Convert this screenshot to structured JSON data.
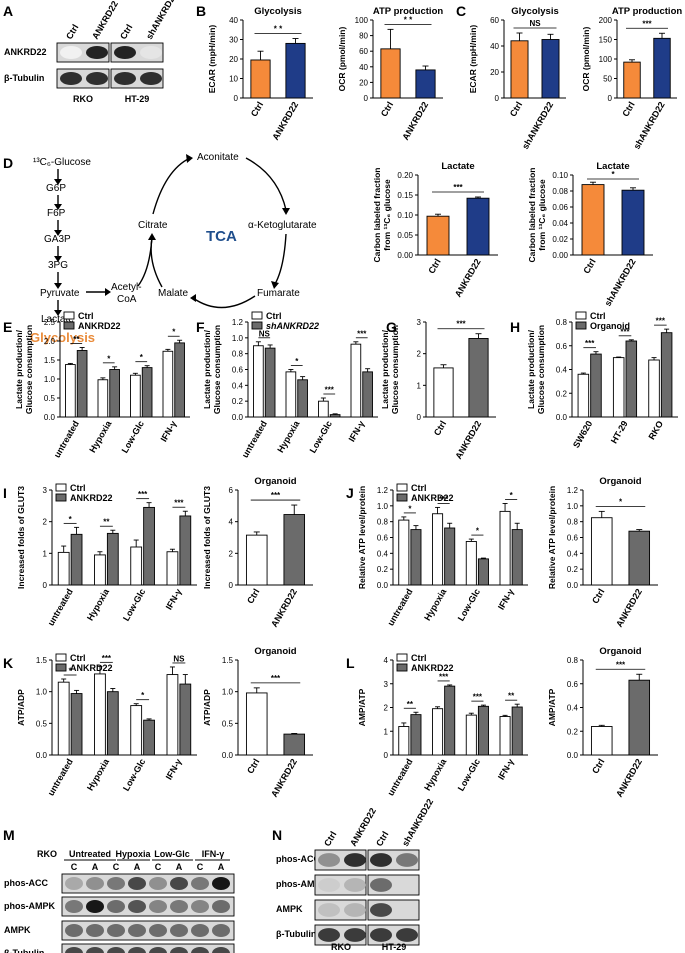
{
  "colors": {
    "orange": "#F58A3A",
    "blue": "#1F3C88",
    "grey": "#6B6B6B",
    "white": "#FFFFFF",
    "black": "#000000",
    "glyco": "#E98B3A",
    "tca": "#1F4E8C"
  },
  "labels": {
    "A": "A",
    "B": "B",
    "C": "C",
    "D": "D",
    "E": "E",
    "F": "F",
    "G": "G",
    "H": "H",
    "I": "I",
    "J": "J",
    "K": "K",
    "L": "L",
    "M": "M",
    "N": "N",
    "pathway": {
      "glucose": "¹³C₆-Glucose",
      "g6p": "G6P",
      "f6p": "F6P",
      "ga3p": "GA3P",
      "pg3": "3PG",
      "pyruvate": "Pyruvate",
      "lactate": "Lactate",
      "glycolysis": "Glycolysis",
      "acetyl": "Acetyl-",
      "coa": "CoA",
      "aconitate": "Aconitate",
      "citrate": "Citrate",
      "akg": "α-Ketoglutarate",
      "tca": "TCA",
      "malate": "Malate",
      "fumarate": "Fumarate"
    }
  },
  "blotA": {
    "lanes": [
      "Ctrl",
      "ANKRD22",
      "Ctrl",
      "shANKRD22"
    ],
    "rows": [
      "ANKRD22",
      "β-Tubulin"
    ],
    "groups": [
      "RKO",
      "HT-29"
    ],
    "intensities": [
      [
        0.05,
        0.9,
        0.9,
        0.1
      ],
      [
        0.85,
        0.85,
        0.85,
        0.85
      ]
    ]
  },
  "blotM": {
    "cell": "RKO",
    "conditions": [
      "Untreated",
      "Hypoxia",
      "Low-Glc",
      "IFN-γ"
    ],
    "lanes": [
      "C",
      "A",
      "C",
      "A",
      "C",
      "A",
      "C",
      "A"
    ],
    "rows": [
      "phos-ACC",
      "phos-AMPK",
      "AMPK",
      "β-Tubulin"
    ],
    "intensities": [
      [
        0.35,
        0.45,
        0.55,
        0.75,
        0.45,
        0.75,
        0.55,
        0.95
      ],
      [
        0.55,
        0.95,
        0.6,
        0.7,
        0.5,
        0.55,
        0.5,
        0.6
      ],
      [
        0.6,
        0.6,
        0.6,
        0.6,
        0.6,
        0.6,
        0.6,
        0.6
      ],
      [
        0.75,
        0.75,
        0.75,
        0.75,
        0.75,
        0.75,
        0.75,
        0.75
      ]
    ]
  },
  "blotN": {
    "lanes": [
      "Ctrl",
      "ANKRD22",
      "Ctrl",
      "shANKRD22"
    ],
    "rows": [
      "phos-ACC",
      "phos-AMPK",
      "AMPK",
      "β-Tubulin"
    ],
    "groups": [
      "RKO",
      "HT-29"
    ],
    "intensities": [
      [
        0.45,
        0.85,
        0.85,
        0.55
      ],
      [
        0.2,
        0.3,
        0.6,
        0.15
      ],
      [
        0.25,
        0.3,
        0.75,
        0.15
      ],
      [
        0.8,
        0.8,
        0.8,
        0.8
      ]
    ]
  },
  "chart_data": [
    {
      "id": "B1",
      "type": "bar",
      "title": "Glycolysis",
      "ylabel": "ECAR (mpH/min)",
      "ylim": [
        0,
        40
      ],
      "ticks": [
        0,
        10,
        20,
        30,
        40
      ],
      "categories": [
        "Ctrl",
        "ANKRD22"
      ],
      "values": [
        19.5,
        28
      ],
      "errors": [
        4.5,
        2.5
      ],
      "colors": [
        "orange",
        "blue"
      ],
      "sig": [
        {
          "a": 0,
          "b": 1,
          "t": "* *"
        }
      ]
    },
    {
      "id": "B2",
      "type": "bar",
      "title": "ATP production",
      "ylabel": "OCR (pmol/min)",
      "ylim": [
        0,
        100
      ],
      "ticks": [
        0,
        20,
        40,
        60,
        80,
        100
      ],
      "categories": [
        "Ctrl",
        "ANKRD22"
      ],
      "values": [
        63,
        36
      ],
      "errors": [
        25,
        5
      ],
      "colors": [
        "orange",
        "blue"
      ],
      "sig": [
        {
          "a": 0,
          "b": 1,
          "t": "* *"
        }
      ]
    },
    {
      "id": "C1",
      "type": "bar",
      "title": "Glycolysis",
      "ylabel": "ECAR (mpH/min)",
      "ylim": [
        0,
        60
      ],
      "ticks": [
        0,
        20,
        40,
        60
      ],
      "categories": [
        "Ctrl",
        "shANKRD22"
      ],
      "values": [
        44,
        45
      ],
      "errors": [
        6,
        4
      ],
      "colors": [
        "orange",
        "blue"
      ],
      "sig": [
        {
          "a": 0,
          "b": 1,
          "t": "NS"
        }
      ]
    },
    {
      "id": "C2",
      "type": "bar",
      "title": "ATP production",
      "ylabel": "OCR (pmol/min)",
      "ylim": [
        0,
        200
      ],
      "ticks": [
        0,
        50,
        100,
        150,
        200
      ],
      "categories": [
        "Ctrl",
        "shANKRD22"
      ],
      "values": [
        92,
        153
      ],
      "errors": [
        6,
        13
      ],
      "colors": [
        "orange",
        "blue"
      ],
      "sig": [
        {
          "a": 0,
          "b": 1,
          "t": "***"
        }
      ]
    },
    {
      "id": "D1",
      "type": "bar",
      "title": "Lactate",
      "ylabel": "Carbon labeled fraction",
      "ylabel2": "from ¹³C₆ glucose",
      "ylim": [
        0,
        0.2
      ],
      "ticks": [
        0,
        0.05,
        0.1,
        0.15,
        0.2
      ],
      "tickLabels": [
        "0.00",
        "0.05",
        "0.10",
        "0.15",
        "0.20"
      ],
      "categories": [
        "Ctrl",
        "ANKRD22"
      ],
      "values": [
        0.097,
        0.142
      ],
      "errors": [
        0.005,
        0.003
      ],
      "colors": [
        "orange",
        "blue"
      ],
      "sig": [
        {
          "a": 0,
          "b": 1,
          "t": "***"
        }
      ]
    },
    {
      "id": "D2",
      "type": "bar",
      "title": "Lactate",
      "ylabel": "Carbon labeled fraction",
      "ylabel2": "from ¹³C₆ glucose",
      "ylim": [
        0,
        0.1
      ],
      "ticks": [
        0,
        0.02,
        0.04,
        0.06,
        0.08,
        0.1
      ],
      "tickLabels": [
        "0.00",
        "0.02",
        "0.04",
        "0.06",
        "0.08",
        "0.10"
      ],
      "categories": [
        "Ctrl",
        "shANKRD22"
      ],
      "values": [
        0.088,
        0.081
      ],
      "errors": [
        0.003,
        0.003
      ],
      "colors": [
        "orange",
        "blue"
      ],
      "sig": [
        {
          "a": 0,
          "b": 1,
          "t": "*"
        }
      ]
    },
    {
      "id": "E",
      "type": "bar",
      "ylabel": "Lactate production/",
      "ylabel2": "Glucose consumption",
      "ylim": [
        0,
        2.5
      ],
      "ticks": [
        0,
        0.5,
        1,
        1.5,
        2,
        2.5
      ],
      "tickLabels": [
        "0.0",
        "0.5",
        "1.0",
        "1.5",
        "2.0",
        "2.5"
      ],
      "categories": [
        "untreated",
        "Hypoxia",
        "Low-Glc",
        "IFN-γ"
      ],
      "series": [
        {
          "name": "Ctrl",
          "values": [
            1.38,
            0.98,
            1.1,
            1.73
          ],
          "errors": [
            0.03,
            0.05,
            0.05,
            0.05
          ]
        },
        {
          "name": "ANKRD22",
          "values": [
            1.75,
            1.25,
            1.3,
            1.95
          ],
          "errors": [
            0.08,
            0.07,
            0.05,
            0.07
          ]
        }
      ],
      "fills": [
        "white",
        "grey"
      ],
      "sig": [
        {
          "g": 0,
          "t": "**"
        },
        {
          "g": 1,
          "t": "*"
        },
        {
          "g": 2,
          "t": "*"
        },
        {
          "g": 3,
          "t": "*"
        }
      ],
      "legendItalic": false
    },
    {
      "id": "F",
      "type": "bar",
      "ylabel": "Lactate production/",
      "ylabel2": "Glucose consumption",
      "ylim": [
        0,
        1.2
      ],
      "ticks": [
        0,
        0.2,
        0.4,
        0.6,
        0.8,
        1.0,
        1.2
      ],
      "tickLabels": [
        "0.0",
        "0.2",
        "0.4",
        "0.6",
        "0.8",
        "1.0",
        "1.2"
      ],
      "categories": [
        "untreated",
        "Hypoxia",
        "Low-Glc",
        "IFN-γ"
      ],
      "series": [
        {
          "name": "Ctrl",
          "values": [
            0.9,
            0.57,
            0.2,
            0.92
          ],
          "errors": [
            0.05,
            0.03,
            0.04,
            0.03
          ]
        },
        {
          "name": "shANKRD22",
          "values": [
            0.87,
            0.47,
            0.03,
            0.57
          ],
          "errors": [
            0.04,
            0.04,
            0.01,
            0.04
          ]
        }
      ],
      "fills": [
        "white",
        "grey"
      ],
      "sig": [
        {
          "g": 0,
          "t": "NS"
        },
        {
          "g": 1,
          "t": "*"
        },
        {
          "g": 2,
          "t": "***"
        },
        {
          "g": 3,
          "t": "***"
        }
      ],
      "legendItalic": true
    },
    {
      "id": "G",
      "type": "bar",
      "ylabel": "Lactate production/",
      "ylabel2": "Glucose consumption",
      "ylim": [
        0,
        3
      ],
      "ticks": [
        0,
        1,
        2,
        3
      ],
      "tickLabels": [
        "0",
        "1",
        "2",
        "3"
      ],
      "categories": [
        "Ctrl",
        "ANKRD22"
      ],
      "values": [
        1.55,
        2.48
      ],
      "errors": [
        0.1,
        0.15
      ],
      "fills": [
        "white",
        "grey"
      ],
      "sig": [
        {
          "a": 0,
          "b": 1,
          "t": "***"
        }
      ]
    },
    {
      "id": "H",
      "type": "bar",
      "ylabel": "Lactate production/",
      "ylabel2": "Glucose consumption",
      "ylim": [
        0,
        0.8
      ],
      "ticks": [
        0,
        0.2,
        0.4,
        0.6,
        0.8
      ],
      "tickLabels": [
        "0.0",
        "0.2",
        "0.4",
        "0.6",
        "0.8"
      ],
      "categories": [
        "SW620",
        "HT-29",
        "RKO"
      ],
      "series": [
        {
          "name": "Ctrl",
          "values": [
            0.36,
            0.5,
            0.48
          ],
          "errors": [
            0.01,
            0.005,
            0.02
          ]
        },
        {
          "name": "Organoid",
          "values": [
            0.53,
            0.64,
            0.71
          ],
          "errors": [
            0.02,
            0.01,
            0.03
          ]
        }
      ],
      "fills": [
        "white",
        "grey"
      ],
      "sig": [
        {
          "g": 0,
          "t": "***"
        },
        {
          "g": 1,
          "t": "***"
        },
        {
          "g": 2,
          "t": "***"
        }
      ],
      "legendItalic": false
    },
    {
      "id": "I1",
      "type": "bar",
      "ylabel": "Increased folds of GLUT3",
      "ylim": [
        0,
        3
      ],
      "ticks": [
        0,
        1,
        2,
        3
      ],
      "tickLabels": [
        "0",
        "1",
        "2",
        "3"
      ],
      "categories": [
        "untreated",
        "Hypoxia",
        "Low-Glc",
        "IFN-γ"
      ],
      "series": [
        {
          "name": "Ctrl",
          "values": [
            1.03,
            0.95,
            1.2,
            1.05
          ],
          "errors": [
            0.2,
            0.1,
            0.22,
            0.08
          ]
        },
        {
          "name": "ANKRD22",
          "values": [
            1.6,
            1.63,
            2.45,
            2.18
          ],
          "errors": [
            0.22,
            0.1,
            0.15,
            0.15
          ]
        }
      ],
      "fills": [
        "white",
        "grey"
      ],
      "sig": [
        {
          "g": 0,
          "t": "*"
        },
        {
          "g": 1,
          "t": "**"
        },
        {
          "g": 2,
          "t": "***"
        },
        {
          "g": 3,
          "t": "***"
        }
      ],
      "legendItalic": false
    },
    {
      "id": "I2",
      "type": "bar",
      "title": "Organoid",
      "ylabel": "Increased folds of GLUT3",
      "ylim": [
        0,
        6
      ],
      "ticks": [
        0,
        2,
        4,
        6
      ],
      "tickLabels": [
        "0",
        "2",
        "4",
        "6"
      ],
      "categories": [
        "Ctrl",
        "ANKRD22"
      ],
      "values": [
        3.15,
        4.45
      ],
      "errors": [
        0.2,
        0.6
      ],
      "fills": [
        "white",
        "grey"
      ],
      "sig": [
        {
          "a": 0,
          "b": 1,
          "t": "***"
        }
      ]
    },
    {
      "id": "J1",
      "type": "bar",
      "ylabel": "Relative ATP level/protein",
      "ylim": [
        0,
        1.2
      ],
      "ticks": [
        0,
        0.2,
        0.4,
        0.6,
        0.8,
        1.0,
        1.2
      ],
      "tickLabels": [
        "0.0",
        "0.2",
        "0.4",
        "0.6",
        "0.8",
        "1.0",
        "1.2"
      ],
      "categories": [
        "untreated",
        "Hypoxia",
        "Low-Glc",
        "IFN-γ"
      ],
      "series": [
        {
          "name": "Ctrl",
          "values": [
            0.82,
            0.9,
            0.55,
            0.93
          ],
          "errors": [
            0.04,
            0.08,
            0.03,
            0.1
          ]
        },
        {
          "name": "ANKRD22",
          "values": [
            0.7,
            0.72,
            0.33,
            0.7
          ],
          "errors": [
            0.05,
            0.06,
            0.01,
            0.08
          ]
        }
      ],
      "fills": [
        "white",
        "grey"
      ],
      "sig": [
        {
          "g": 0,
          "t": "*"
        },
        {
          "g": 1,
          "t": "***"
        },
        {
          "g": 2,
          "t": "*"
        },
        {
          "g": 3,
          "t": "*"
        }
      ],
      "legendItalic": false
    },
    {
      "id": "J2",
      "type": "bar",
      "title": "Organoid",
      "ylabel": "Relative ATP level/protein",
      "ylim": [
        0,
        1.2
      ],
      "ticks": [
        0,
        0.2,
        0.4,
        0.6,
        0.8,
        1.0,
        1.2
      ],
      "tickLabels": [
        "0.0",
        "0.2",
        "0.4",
        "0.6",
        "0.8",
        "1.0",
        "1.2"
      ],
      "categories": [
        "Ctrl",
        "ANKRD22"
      ],
      "values": [
        0.85,
        0.68
      ],
      "errors": [
        0.08,
        0.02
      ],
      "fills": [
        "white",
        "grey"
      ],
      "sig": [
        {
          "a": 0,
          "b": 1,
          "t": "*"
        }
      ]
    },
    {
      "id": "K1",
      "type": "bar",
      "ylabel": "ATP/ADP",
      "ylim": [
        0,
        1.5
      ],
      "ticks": [
        0,
        0.5,
        1.0,
        1.5
      ],
      "tickLabels": [
        "0.0",
        "0.5",
        "1.0",
        "1.5"
      ],
      "categories": [
        "untreated",
        "Hypoxia",
        "Low-Glc",
        "IFN-γ"
      ],
      "series": [
        {
          "name": "Ctrl",
          "values": [
            1.15,
            1.28,
            0.78,
            1.27
          ],
          "errors": [
            0.05,
            0.12,
            0.03,
            0.12
          ]
        },
        {
          "name": "ANKRD22",
          "values": [
            0.97,
            1.0,
            0.55,
            1.12
          ],
          "errors": [
            0.05,
            0.05,
            0.02,
            0.15
          ]
        }
      ],
      "fills": [
        "white",
        "grey"
      ],
      "sig": [
        {
          "g": 0,
          "t": "*"
        },
        {
          "g": 1,
          "t": "***"
        },
        {
          "g": 2,
          "t": "*"
        },
        {
          "g": 3,
          "t": "NS"
        }
      ],
      "legendItalic": false
    },
    {
      "id": "K2",
      "type": "bar",
      "title": "Organoid",
      "ylabel": "ATP/ADP",
      "ylim": [
        0,
        1.5
      ],
      "ticks": [
        0,
        0.5,
        1.0,
        1.5
      ],
      "tickLabels": [
        "0.0",
        "0.5",
        "1.0",
        "1.5"
      ],
      "categories": [
        "Ctrl",
        "ANKRD22"
      ],
      "values": [
        0.98,
        0.33
      ],
      "errors": [
        0.08,
        0.01
      ],
      "fills": [
        "white",
        "grey"
      ],
      "sig": [
        {
          "a": 0,
          "b": 1,
          "t": "***"
        }
      ]
    },
    {
      "id": "L1",
      "type": "bar",
      "ylabel": "AMP/ATP",
      "ylim": [
        0,
        4
      ],
      "ticks": [
        0,
        1,
        2,
        3,
        4
      ],
      "tickLabels": [
        "0",
        "1",
        "2",
        "3",
        "4"
      ],
      "categories": [
        "untreated",
        "Hypoxia",
        "Low-Glc",
        "IFN-γ"
      ],
      "series": [
        {
          "name": "Ctrl",
          "values": [
            1.2,
            1.95,
            1.68,
            1.62
          ],
          "errors": [
            0.15,
            0.08,
            0.08,
            0.05
          ]
        },
        {
          "name": "ANKRD22",
          "values": [
            1.7,
            2.9,
            2.05,
            2.02
          ],
          "errors": [
            0.1,
            0.05,
            0.05,
            0.12
          ]
        }
      ],
      "fills": [
        "white",
        "grey"
      ],
      "sig": [
        {
          "g": 0,
          "t": "**"
        },
        {
          "g": 1,
          "t": "***"
        },
        {
          "g": 2,
          "t": "***"
        },
        {
          "g": 3,
          "t": "**"
        }
      ],
      "legendItalic": false
    },
    {
      "id": "L2",
      "type": "bar",
      "title": "Organoid",
      "ylabel": "AMP/ATP",
      "ylim": [
        0,
        0.8
      ],
      "ticks": [
        0,
        0.2,
        0.4,
        0.6,
        0.8
      ],
      "tickLabels": [
        "0.0",
        "0.2",
        "0.4",
        "0.6",
        "0.8"
      ],
      "categories": [
        "Ctrl",
        "ANKRD22"
      ],
      "values": [
        0.24,
        0.63
      ],
      "errors": [
        0.01,
        0.05
      ],
      "fills": [
        "white",
        "grey"
      ],
      "sig": [
        {
          "a": 0,
          "b": 1,
          "t": "***"
        }
      ]
    }
  ]
}
